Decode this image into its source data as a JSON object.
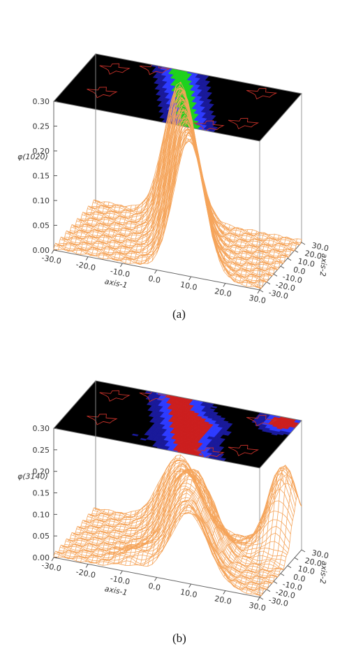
{
  "chart_data": [
    {
      "type": "surface",
      "panel_label": "(a)",
      "zlabel": "φ(1020)",
      "xlabel": "axis-1",
      "ylabel": "axis-2",
      "xlim": [
        -30,
        30
      ],
      "ylim": [
        -30,
        30
      ],
      "zlim": [
        0,
        0.3
      ],
      "x_ticks": [
        "-30.0",
        "-20.0",
        "-10.0",
        "0.0",
        "10.0",
        "20.0",
        "30.0"
      ],
      "y_ticks": [
        "-30.0",
        "-20.0",
        "-10.0",
        "0.0",
        "10.0",
        "20.0",
        "30.0"
      ],
      "z_ticks": [
        "0.00",
        "0.05",
        "0.10",
        "0.15",
        "0.20",
        "0.25",
        "0.30"
      ],
      "ridge": {
        "peak": 0.27,
        "width": 4.5,
        "slope": -0.25,
        "intercept": 2
      },
      "surface_color": "#f5a45a",
      "heatmap_colors": [
        "#000000",
        "#1a1a9a",
        "#2e3cff",
        "#1fd21f"
      ]
    },
    {
      "type": "surface",
      "panel_label": "(b)",
      "zlabel": "φ(3140)",
      "xlabel": "axis-1",
      "ylabel": "axis-2",
      "xlim": [
        -30,
        30
      ],
      "ylim": [
        -30,
        30
      ],
      "zlim": [
        0,
        0.3
      ],
      "x_ticks": [
        "-30.0",
        "-20.0",
        "-10.0",
        "0.0",
        "10.0",
        "20.0",
        "30.0"
      ],
      "y_ticks": [
        "-30.0",
        "-20.0",
        "-10.0",
        "0.0",
        "10.0",
        "20.0",
        "30.0"
      ],
      "z_ticks": [
        "0.00",
        "0.05",
        "0.10",
        "0.15",
        "0.20",
        "0.25",
        "0.30"
      ],
      "ridge": {
        "peak": 0.16,
        "width": 5.5,
        "slope": -0.25,
        "intercept": 2
      },
      "peaks": [
        {
          "x": 26,
          "y": 24,
          "z": 0.23
        },
        {
          "x": 8,
          "y": 4,
          "z": 0.11
        },
        {
          "x": -8,
          "y": -20,
          "z": 0.06
        }
      ],
      "surface_color": "#f5a45a",
      "heatmap_colors": [
        "#000000",
        "#1a1a9a",
        "#2e3cff",
        "#cc1f1f"
      ]
    }
  ]
}
